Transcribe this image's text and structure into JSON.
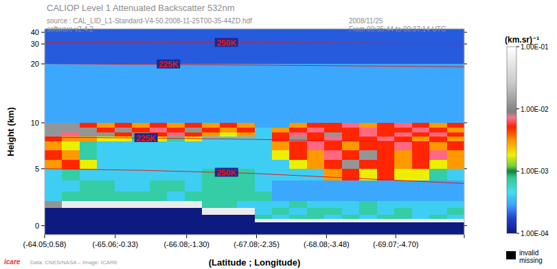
{
  "chart_data": {
    "type": "heatmap",
    "title": "CALIOP Level 1 Attenuated Backscatter 532nm",
    "subtitle": "source : CAL_LID_L1-Standard-V4-50.2008-11-25T00-35-44ZD.hdf",
    "annotations": [
      {
        "text": "software v2.4.2"
      },
      {
        "text": "2008/11/25"
      },
      {
        "text": "From 00:35:44 to 00:37:14 UTC"
      },
      {
        "text": "Data: CNES/NASA – Image: ICARE"
      },
      {
        "text": "icare"
      },
      {
        "text": "invalid"
      },
      {
        "text": "missing"
      }
    ],
    "x_label": "(Latitude ; Longitude)",
    "y_label": "Height (km)",
    "xlim": [
      -64.05,
      -70.05
    ],
    "xticks": [
      {
        "value": -64.05,
        "label": "(-64.05;0.58)"
      },
      {
        "value": -65.06,
        "label": "(-65.06;-0.33)"
      },
      {
        "value": -66.08,
        "label": "(-66.08;-1.30)"
      },
      {
        "value": -67.08,
        "label": "(-67.08;-2.35)"
      },
      {
        "value": -68.08,
        "label": "(-68.08;-3.48)"
      },
      {
        "value": -69.07,
        "label": "(-69.07;-4.70)"
      }
    ],
    "ylim": [
      -0.8,
      43
    ],
    "yticks": [
      0,
      5,
      10,
      20,
      30,
      40
    ],
    "x_edges": [
      -64.05,
      -64.3,
      -64.55,
      -64.8,
      -65.05,
      -65.3,
      -65.55,
      -65.8,
      -66.05,
      -66.3,
      -66.55,
      -66.8,
      -67.05,
      -67.3,
      -67.55,
      -67.8,
      -68.05,
      -68.3,
      -68.55,
      -68.8,
      -69.05,
      -69.3,
      -69.55,
      -69.8,
      -70.05
    ],
    "y_edges": [
      -0.8,
      0,
      0.3,
      0.6,
      1.0,
      1.6,
      2.2,
      3,
      4,
      5,
      6,
      7,
      8,
      8.5,
      9,
      9.5,
      10,
      12,
      15,
      20,
      30,
      43
    ],
    "z": [
      [
        0.0001,
        0.0001,
        0.0001,
        0.0001,
        0.0001,
        0.0001,
        0.0001,
        0.0001,
        0.0001,
        0.0001,
        0.0001,
        0.0001,
        0.0001,
        0.0001,
        0.0001,
        0.0001,
        0.0001,
        0.0001,
        0.0001,
        0.0001,
        0.0001,
        0.0001,
        0.0001,
        0.0001
      ],
      [
        0.0001,
        0.0001,
        0.0001,
        0.0001,
        0.0001,
        0.0001,
        0.0001,
        0.0001,
        0.0001,
        0.0001,
        0.0001,
        0.0001,
        0.0001,
        0.0001,
        0.0001,
        0.0001,
        0.0001,
        0.0001,
        0.0001,
        0.0001,
        0.0001,
        0.0001,
        0.0001,
        0.0001
      ],
      [
        0.0001,
        0.0001,
        0.0001,
        0.0001,
        0.0001,
        0.0001,
        0.0001,
        0.0001,
        0.0001,
        0.0001,
        0.0001,
        0.0001,
        0.06,
        0.06,
        0.06,
        0.06,
        0.06,
        0.06,
        0.06,
        0.06,
        0.06,
        0.06,
        0.06,
        0.06
      ],
      [
        0.0001,
        0.0001,
        0.0001,
        0.0001,
        0.0001,
        0.0001,
        0.0001,
        0.0001,
        0.0001,
        0.0001,
        0.0001,
        0.0001,
        0.0007,
        0.0004,
        0.0007,
        0.0007,
        0.0004,
        0.0007,
        0.0004,
        0.0007,
        0.0007,
        0.0004,
        0.0007,
        0.0004
      ],
      [
        0.0001,
        0.0001,
        0.0001,
        0.0001,
        0.0001,
        0.0001,
        0.0001,
        0.0001,
        0.0001,
        0.06,
        0.06,
        0.06,
        0.0004,
        0.0007,
        0.0004,
        0.0007,
        0.0007,
        0.0004,
        0.0007,
        0.0004,
        0.0007,
        0.0004,
        0.0004,
        0.0007
      ],
      [
        0.012,
        0.06,
        0.06,
        0.06,
        0.06,
        0.06,
        0.06,
        0.06,
        0.06,
        0.0007,
        0.0007,
        0.0004,
        0.0004,
        0.0004,
        0.0007,
        0.0004,
        0.0004,
        0.0004,
        0.0007,
        0.0004,
        0.0004,
        0.0004,
        0.0004,
        0.0004
      ],
      [
        0.0004,
        0.0007,
        0.0007,
        0.0007,
        0.0007,
        0.0007,
        0.0007,
        0.0004,
        0.0007,
        0.0007,
        0.0007,
        0.0007,
        0.0007,
        0.0003,
        0.0003,
        0.0003,
        0.0003,
        0.0003,
        0.0003,
        0.0003,
        0.0003,
        0.0003,
        0.0003,
        0.0003
      ],
      [
        0.0004,
        0.0004,
        0.0007,
        0.0007,
        0.0004,
        0.0004,
        0.0007,
        0.0007,
        0.0004,
        0.0007,
        0.0007,
        0.0007,
        0.0004,
        0.0003,
        0.0003,
        0.0003,
        0.0003,
        0.0003,
        0.0003,
        0.0003,
        0.0003,
        0.0003,
        0.0003,
        0.0003
      ],
      [
        0.0004,
        0.0007,
        0.0004,
        0.0004,
        0.0004,
        0.0004,
        0.0004,
        0.0004,
        0.0004,
        0.0007,
        0.0007,
        0.0007,
        0.0004,
        0.0004,
        0.0004,
        0.0004,
        0.003,
        0.005,
        0.0018,
        0.005,
        0.0018,
        0.0018,
        0.0007,
        0.0004
      ],
      [
        0.003,
        0.005,
        0.0018,
        0.0004,
        0.0004,
        0.0004,
        0.0004,
        0.0004,
        0.0004,
        0.0004,
        0.0004,
        0.0004,
        0.0004,
        0.0004,
        0.0018,
        0.003,
        0.005,
        0.012,
        0.005,
        0.005,
        0.003,
        0.005,
        0.0018,
        0.003
      ],
      [
        0.005,
        0.003,
        0.0007,
        0.0004,
        0.0004,
        0.0004,
        0.0004,
        0.0004,
        0.0004,
        0.0004,
        0.0004,
        0.0004,
        0.0004,
        0.0018,
        0.005,
        0.003,
        0.007,
        0.005,
        0.012,
        0.005,
        0.003,
        0.005,
        0.007,
        0.003
      ],
      [
        0.003,
        0.0018,
        0.0007,
        0.0004,
        0.0004,
        0.0004,
        0.0004,
        0.0004,
        0.0004,
        0.0004,
        0.0004,
        0.0004,
        0.0004,
        0.003,
        0.005,
        0.007,
        0.005,
        0.003,
        0.005,
        0.005,
        0.007,
        0.005,
        0.003,
        0.005
      ],
      [
        0.005,
        0.003,
        0.003,
        0.0018,
        0.0018,
        0.0007,
        0.0018,
        0.0007,
        0.0018,
        0.0004,
        0.0004,
        0.0004,
        0.0004,
        0.005,
        0.012,
        0.005,
        0.007,
        0.005,
        0.005,
        0.007,
        0.005,
        0.003,
        0.005,
        0.003
      ],
      [
        0.012,
        0.007,
        0.012,
        0.012,
        0.005,
        0.012,
        0.005,
        0.007,
        0.005,
        0.003,
        0.0018,
        0.003,
        0.0004,
        0.005,
        0.007,
        0.005,
        0.012,
        0.005,
        0.007,
        0.005,
        0.007,
        0.005,
        0.007,
        0.005
      ],
      [
        0.012,
        0.012,
        0.012,
        0.005,
        0.012,
        0.005,
        0.007,
        0.005,
        0.012,
        0.005,
        0.003,
        0.005,
        0.0004,
        0.003,
        0.005,
        0.007,
        0.005,
        0.005,
        0.007,
        0.005,
        0.005,
        0.007,
        0.005,
        0.003
      ],
      [
        0.012,
        0.012,
        0.005,
        0.003,
        0.005,
        0.003,
        0.005,
        0.003,
        0.005,
        0.003,
        0.005,
        0.003,
        0.0003,
        0.0003,
        0.003,
        0.005,
        0.005,
        0.007,
        0.003,
        0.005,
        0.007,
        0.005,
        0.003,
        0.005
      ],
      [
        0.0003,
        0.0003,
        0.0003,
        0.0003,
        0.0003,
        0.0003,
        0.0003,
        0.0003,
        0.0003,
        0.0003,
        0.0003,
        0.0003,
        0.0003,
        0.0003,
        0.0003,
        0.0003,
        0.0003,
        0.0003,
        0.0003,
        0.0003,
        0.0003,
        0.0003,
        0.0003,
        0.0003
      ],
      [
        0.0003,
        0.0003,
        0.0003,
        0.0003,
        0.0003,
        0.0003,
        0.0003,
        0.0003,
        0.0003,
        0.0003,
        0.0003,
        0.0003,
        0.0003,
        0.0003,
        0.0003,
        0.0003,
        0.0003,
        0.0003,
        0.0003,
        0.0003,
        0.0003,
        0.0003,
        0.0003,
        0.0003
      ],
      [
        0.0003,
        0.0003,
        0.0003,
        0.0003,
        0.0003,
        0.0003,
        0.0003,
        0.0003,
        0.0003,
        0.0003,
        0.0003,
        0.0003,
        0.0003,
        0.0003,
        0.0003,
        0.0003,
        0.0003,
        0.0003,
        0.0003,
        0.0003,
        0.0003,
        0.0003,
        0.0003,
        0.0003
      ],
      [
        0.0002,
        0.0002,
        0.0002,
        0.0002,
        0.0002,
        0.0002,
        0.0002,
        0.0002,
        0.0002,
        0.0002,
        0.0002,
        0.0002,
        0.0002,
        0.0002,
        0.0002,
        0.0002,
        0.0002,
        0.0002,
        0.0002,
        0.0002,
        0.0002,
        0.0002,
        0.0002,
        0.0002
      ],
      [
        0.0002,
        0.0002,
        0.0002,
        0.0002,
        0.0002,
        0.0002,
        0.0002,
        0.0002,
        0.0002,
        0.0002,
        0.0002,
        0.0002,
        0.0002,
        0.0002,
        0.0002,
        0.0002,
        0.0002,
        0.0002,
        0.0002,
        0.0002,
        0.0002,
        0.0002,
        0.0002,
        0.0002
      ]
    ],
    "colorbar": {
      "label": "(km.sr)⁻¹",
      "range": [
        0.0001,
        0.1
      ],
      "log": true,
      "ticks": [
        {
          "value": 0.1,
          "label": "1.00E-01"
        },
        {
          "value": 0.01,
          "label": "1.00E-02"
        },
        {
          "value": 0.001,
          "label": "1.00E-03"
        },
        {
          "value": 0.0001,
          "label": "1.00E-04"
        }
      ]
    },
    "series": [
      {
        "name": "250K",
        "color": "#e81818",
        "type": "line",
        "label_x": -66.65,
        "x": [
          -64.05,
          -67.0,
          -70.05
        ],
        "y": [
          31.3,
          31.0,
          30.2
        ]
      },
      {
        "name": "225K",
        "color": "#e81818",
        "type": "line",
        "label_x": -65.82,
        "x": [
          -64.05,
          -67.0,
          -70.05
        ],
        "y": [
          20.1,
          19.8,
          19.5
        ]
      },
      {
        "name": "225K",
        "color": "#e81818",
        "type": "line",
        "label_x": -65.5,
        "x": [
          -64.05,
          -65.5,
          -67.0,
          -68.5,
          -70.05
        ],
        "y": [
          8.4,
          8.35,
          8.2,
          8.0,
          7.9
        ]
      },
      {
        "name": "250K",
        "color": "#e81818",
        "type": "line",
        "label_x": -66.65,
        "x": [
          -64.05,
          -65.5,
          -67.0,
          -68.5,
          -70.05
        ],
        "y": [
          5.0,
          4.85,
          4.6,
          4.15,
          3.7
        ]
      }
    ]
  }
}
